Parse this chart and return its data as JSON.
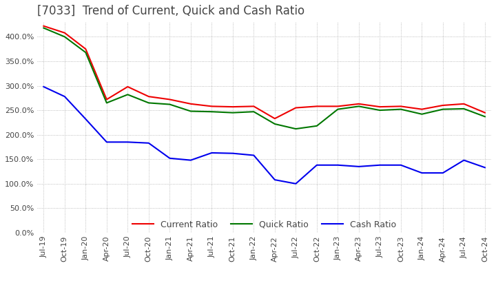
{
  "title": "[7033]  Trend of Current, Quick and Cash Ratio",
  "title_fontsize": 12,
  "title_color": "#444444",
  "ylim": [
    0,
    430
  ],
  "yticks": [
    0,
    50,
    100,
    150,
    200,
    250,
    300,
    350,
    400
  ],
  "background_color": "#ffffff",
  "grid_color": "#aaaaaa",
  "x_labels": [
    "Jul-19",
    "Oct-19",
    "Jan-20",
    "Apr-20",
    "Jul-20",
    "Oct-20",
    "Jan-21",
    "Apr-21",
    "Jul-21",
    "Oct-21",
    "Jan-22",
    "Apr-22",
    "Jul-22",
    "Oct-22",
    "Jan-23",
    "Apr-23",
    "Jul-23",
    "Oct-23",
    "Jan-24",
    "Apr-24",
    "Jul-24",
    "Oct-24"
  ],
  "current_ratio": [
    422,
    408,
    375,
    272,
    298,
    278,
    272,
    263,
    258,
    257,
    258,
    233,
    255,
    258,
    258,
    263,
    257,
    258,
    252,
    260,
    263,
    245
  ],
  "quick_ratio": [
    418,
    400,
    368,
    265,
    282,
    265,
    262,
    248,
    247,
    245,
    247,
    222,
    212,
    218,
    252,
    258,
    250,
    252,
    242,
    252,
    253,
    237
  ],
  "cash_ratio": [
    298,
    278,
    232,
    185,
    185,
    183,
    152,
    148,
    163,
    162,
    158,
    108,
    100,
    138,
    138,
    135,
    138,
    138,
    122,
    122,
    148,
    133
  ],
  "current_color": "#ee0000",
  "quick_color": "#007700",
  "cash_color": "#0000ee",
  "line_width": 1.5,
  "legend_fontsize": 9,
  "tick_fontsize": 8,
  "tick_color": "#444444"
}
